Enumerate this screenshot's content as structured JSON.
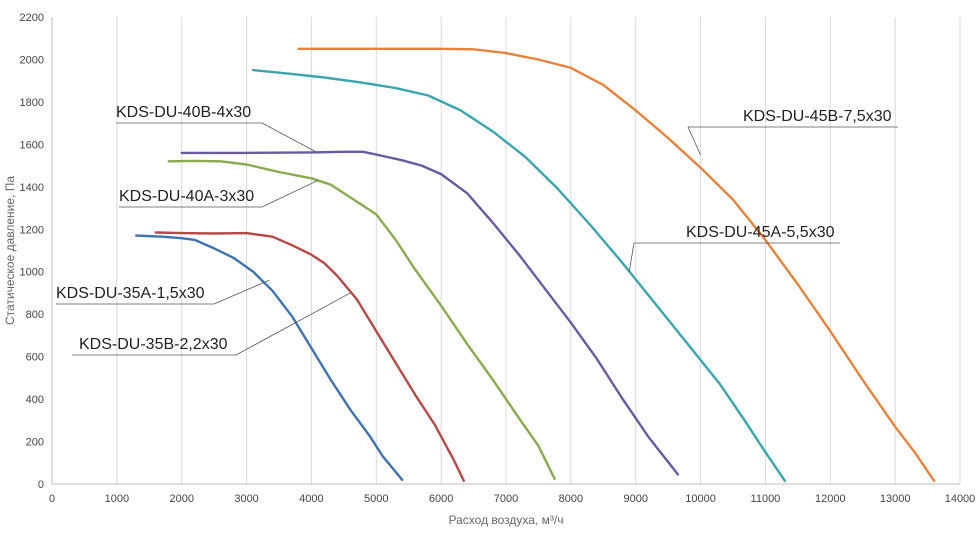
{
  "chart_data": {
    "type": "line",
    "xlabel": "Расход воздуха, м³/ч",
    "ylabel": "Статическое давление, Па",
    "xlim": [
      0,
      14000
    ],
    "ylim": [
      0,
      2200
    ],
    "x_ticks": [
      0,
      1000,
      2000,
      3000,
      4000,
      5000,
      6000,
      7000,
      8000,
      9000,
      10000,
      11000,
      12000,
      13000,
      14000
    ],
    "y_ticks": [
      0,
      200,
      400,
      600,
      800,
      1000,
      1200,
      1400,
      1600,
      1800,
      2000,
      2200
    ],
    "grid": {
      "vertical": true,
      "horizontal": false
    },
    "legend": "callout labels",
    "series": [
      {
        "name": "KDS-DU-35A-1,5x30",
        "color": "#3f72ad",
        "label_anchor": [
          3350,
          960
        ],
        "points": [
          [
            1300,
            1170
          ],
          [
            1700,
            1165
          ],
          [
            2000,
            1158
          ],
          [
            2200,
            1150
          ],
          [
            2500,
            1110
          ],
          [
            2800,
            1065
          ],
          [
            3100,
            1000
          ],
          [
            3400,
            910
          ],
          [
            3700,
            790
          ],
          [
            4000,
            640
          ],
          [
            4300,
            490
          ],
          [
            4600,
            350
          ],
          [
            4900,
            225
          ],
          [
            5100,
            130
          ],
          [
            5400,
            20
          ]
        ]
      },
      {
        "name": "KDS-DU-35B-2,2x30",
        "color": "#b44a47",
        "label_anchor": [
          4600,
          900
        ],
        "points": [
          [
            1600,
            1185
          ],
          [
            2000,
            1182
          ],
          [
            2500,
            1180
          ],
          [
            3000,
            1182
          ],
          [
            3400,
            1165
          ],
          [
            3700,
            1125
          ],
          [
            4000,
            1080
          ],
          [
            4200,
            1040
          ],
          [
            4400,
            980
          ],
          [
            4700,
            870
          ],
          [
            5000,
            720
          ],
          [
            5300,
            570
          ],
          [
            5600,
            420
          ],
          [
            5900,
            280
          ],
          [
            6200,
            110
          ],
          [
            6350,
            15
          ]
        ]
      },
      {
        "name": "KDS-DU-40A-3x30",
        "color": "#8aaa4f",
        "label_anchor": [
          4100,
          1430
        ],
        "points": [
          [
            1800,
            1520
          ],
          [
            2200,
            1522
          ],
          [
            2600,
            1520
          ],
          [
            3000,
            1505
          ],
          [
            3500,
            1470
          ],
          [
            4000,
            1440
          ],
          [
            4300,
            1410
          ],
          [
            4600,
            1350
          ],
          [
            5000,
            1270
          ],
          [
            5300,
            1150
          ],
          [
            5600,
            1010
          ],
          [
            6000,
            840
          ],
          [
            6400,
            660
          ],
          [
            6800,
            490
          ],
          [
            7200,
            310
          ],
          [
            7500,
            180
          ],
          [
            7750,
            25
          ]
        ]
      },
      {
        "name": "KDS-DU-40B-4x30",
        "color": "#6b5a9f",
        "label_anchor": [
          4100,
          1560
        ],
        "points": [
          [
            2000,
            1560
          ],
          [
            3000,
            1560
          ],
          [
            4000,
            1562
          ],
          [
            4500,
            1565
          ],
          [
            4800,
            1565
          ],
          [
            5100,
            1545
          ],
          [
            5400,
            1525
          ],
          [
            5700,
            1500
          ],
          [
            6000,
            1460
          ],
          [
            6400,
            1370
          ],
          [
            6800,
            1230
          ],
          [
            7200,
            1080
          ],
          [
            7600,
            920
          ],
          [
            8000,
            760
          ],
          [
            8400,
            590
          ],
          [
            8800,
            400
          ],
          [
            9200,
            220
          ],
          [
            9650,
            45
          ]
        ]
      },
      {
        "name": "KDS-DU-45A-5,5x30",
        "color": "#3ba4ac",
        "label_anchor": [
          8900,
          1000
        ],
        "points": [
          [
            3100,
            1950
          ],
          [
            3600,
            1935
          ],
          [
            4200,
            1915
          ],
          [
            4800,
            1890
          ],
          [
            5300,
            1865
          ],
          [
            5800,
            1830
          ],
          [
            6300,
            1760
          ],
          [
            6800,
            1660
          ],
          [
            7300,
            1540
          ],
          [
            7800,
            1390
          ],
          [
            8300,
            1220
          ],
          [
            8800,
            1040
          ],
          [
            9300,
            850
          ],
          [
            9800,
            660
          ],
          [
            10300,
            470
          ],
          [
            10700,
            290
          ],
          [
            11000,
            150
          ],
          [
            11300,
            15
          ]
        ]
      },
      {
        "name": "KDS-DU-45B-7,5x30",
        "color": "#e5833d",
        "label_anchor": [
          10000,
          1550
        ],
        "points": [
          [
            3800,
            2050
          ],
          [
            4500,
            2050
          ],
          [
            5200,
            2050
          ],
          [
            6000,
            2050
          ],
          [
            6500,
            2048
          ],
          [
            7000,
            2030
          ],
          [
            7500,
            2000
          ],
          [
            8000,
            1960
          ],
          [
            8500,
            1880
          ],
          [
            9000,
            1760
          ],
          [
            9500,
            1630
          ],
          [
            10000,
            1490
          ],
          [
            10500,
            1340
          ],
          [
            11000,
            1150
          ],
          [
            11500,
            940
          ],
          [
            12000,
            720
          ],
          [
            12500,
            490
          ],
          [
            13000,
            270
          ],
          [
            13300,
            150
          ],
          [
            13600,
            15
          ]
        ]
      }
    ],
    "labels": [
      {
        "text": "KDS-DU-40B-4x30",
        "series": 3
      },
      {
        "text": "KDS-DU-40A-3x30",
        "series": 2
      },
      {
        "text": "KDS-DU-45B-7,5x30",
        "series": 5
      },
      {
        "text": "KDS-DU-45A-5,5x30",
        "series": 4
      },
      {
        "text": "KDS-DU-35A-1,5x30",
        "series": 0
      },
      {
        "text": "KDS-DU-35B-2,2x30",
        "series": 1
      }
    ]
  }
}
